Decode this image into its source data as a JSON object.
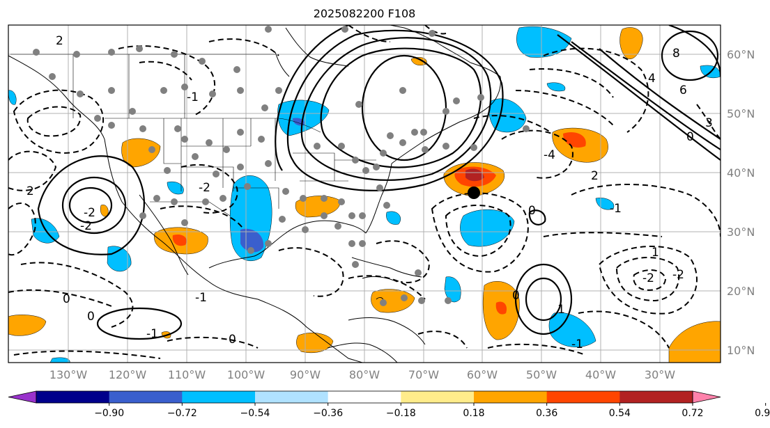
{
  "title": "2025082200 F108",
  "longitude_labels": [
    "130°W",
    "120°W",
    "110°W",
    "100°W",
    "90°W",
    "80°W",
    "70°W",
    "60°W",
    "50°W",
    "40°W",
    "30°W"
  ],
  "latitude_labels": [
    "60°N",
    "50°N",
    "40°N",
    "30°N",
    "20°N",
    "10°N"
  ],
  "colorbar": {
    "ticks": [
      "−0.90",
      "−0.72",
      "−0.54",
      "−0.36",
      "−0.18",
      "0.18",
      "0.36",
      "0.54",
      "0.72",
      "0.90"
    ],
    "colors": [
      "#9932cc",
      "#00008b",
      "#3a5fcd",
      "#00bfff",
      "#b0e2ff",
      "#ffffff",
      "#ffec8b",
      "#ffa500",
      "#ff4500",
      "#b22222",
      "#ff82ab"
    ]
  },
  "contour_labels": [
    "-2",
    "-2",
    "2",
    "2",
    "-1",
    "0",
    "1",
    "-1",
    "0",
    "2",
    "-4",
    "4",
    "6",
    "8",
    "3",
    "0",
    "-2",
    "-2",
    "1",
    "-1",
    "0",
    "-1",
    "-2",
    "-1",
    "0",
    "0"
  ],
  "colors": {
    "map_border": "#000000",
    "grid": "#b0b0b0",
    "axis_text": "#808080",
    "point_marker": "#808080",
    "highlight_marker": "#000000"
  }
}
